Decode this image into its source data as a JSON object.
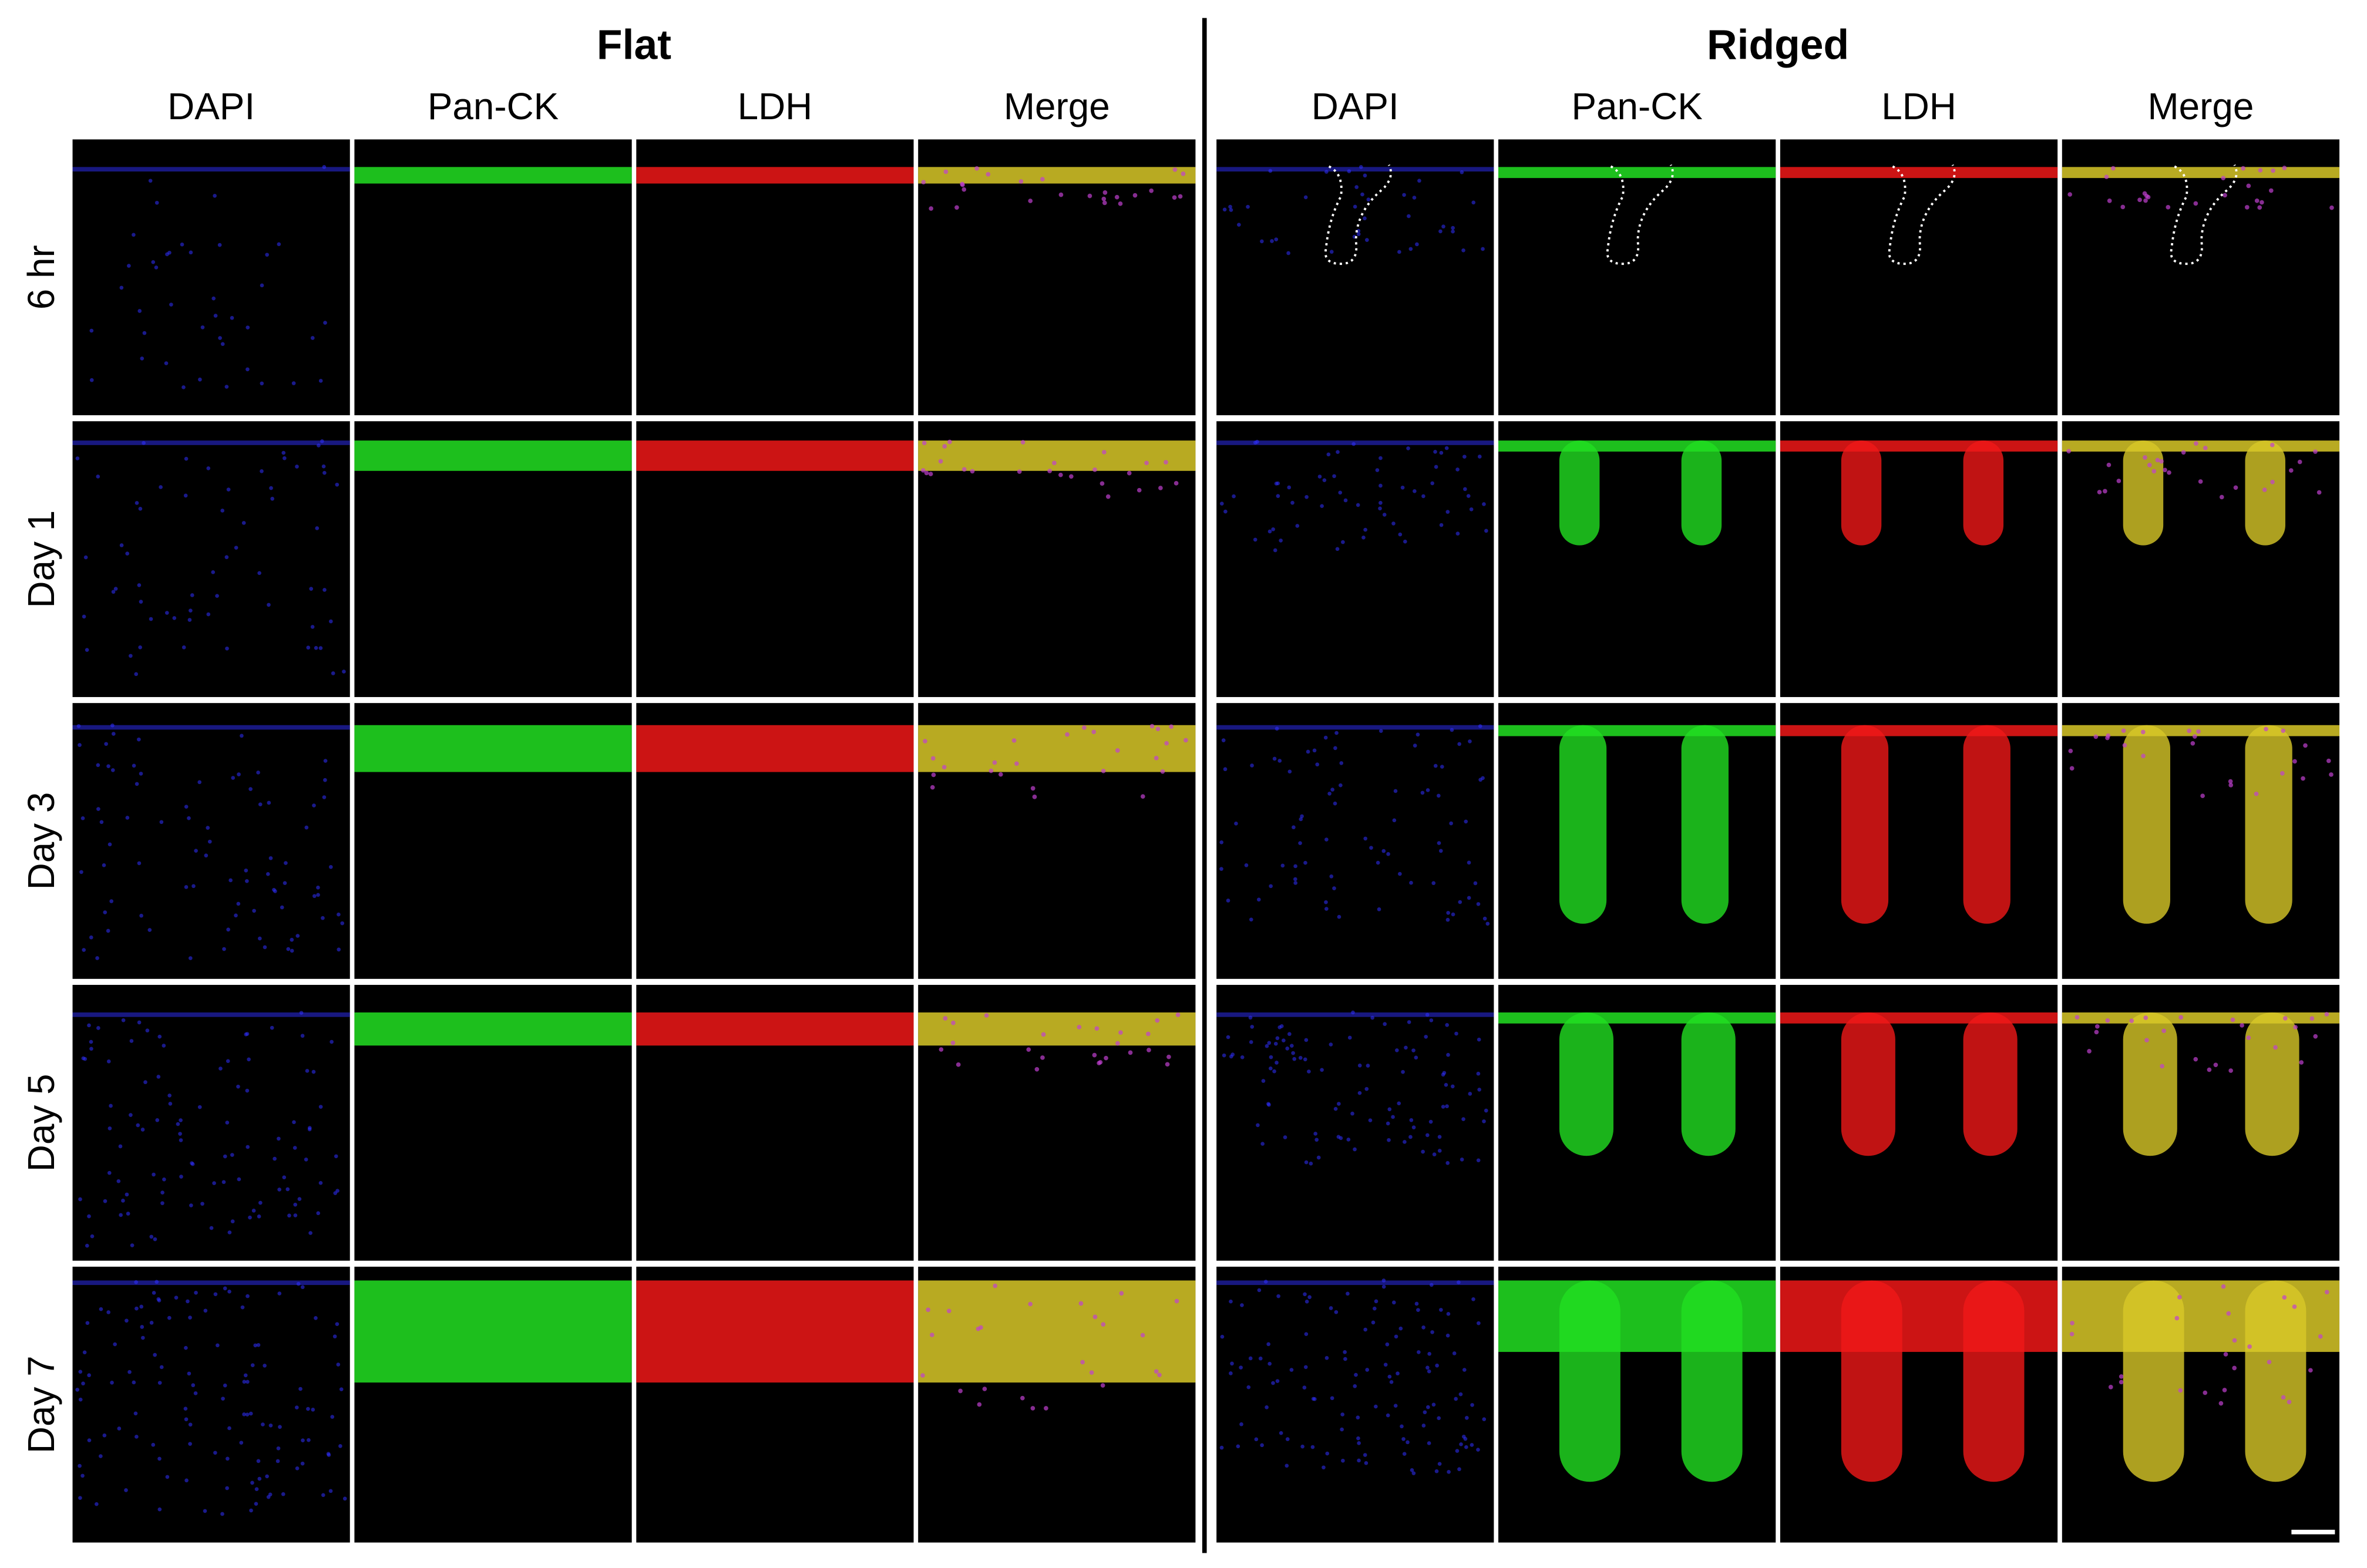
{
  "groups": [
    {
      "title": "Flat",
      "columns": [
        "DAPI",
        "Pan-CK",
        "LDH",
        "Merge"
      ]
    },
    {
      "title": "Ridged",
      "columns": [
        "DAPI",
        "Pan-CK",
        "LDH",
        "Merge"
      ]
    }
  ],
  "rows": [
    "6 hr",
    "Day 1",
    "Day 3",
    "Day 5",
    "Day 7"
  ]
}
